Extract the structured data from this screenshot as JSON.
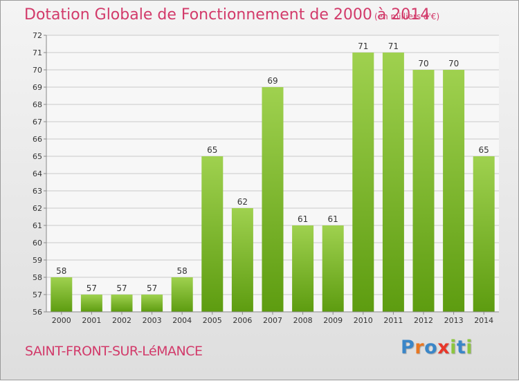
{
  "title": "Dotation Globale de Fonctionnement de 2000 à 2014",
  "unit_note": "(en milliers d'€)",
  "commune": "SAINT-FRONT-SUR-LéMANCE",
  "logo": {
    "text": "Proxiti",
    "letters": [
      {
        "ch": "P",
        "color": "#3a86c8"
      },
      {
        "ch": "r",
        "color": "#e87722"
      },
      {
        "ch": "o",
        "color": "#3a86c8"
      },
      {
        "ch": "x",
        "color": "#e8372a"
      },
      {
        "ch": "i",
        "color": "#8cc63f"
      },
      {
        "ch": "t",
        "color": "#3a86c8"
      },
      {
        "ch": "i",
        "color": "#8cc63f"
      }
    ]
  },
  "colors": {
    "title": "#d23a6a",
    "bar_top": "#9fd14f",
    "bar_bottom": "#5d9c10",
    "grid": "#c8c8c8",
    "axis_text": "#333333"
  },
  "chart_data": {
    "type": "bar",
    "categories": [
      "2000",
      "2001",
      "2002",
      "2003",
      "2004",
      "2005",
      "2006",
      "2007",
      "2008",
      "2009",
      "2010",
      "2011",
      "2012",
      "2013",
      "2014"
    ],
    "values": [
      58,
      57,
      57,
      57,
      58,
      65,
      62,
      69,
      61,
      61,
      71,
      71,
      70,
      70,
      65
    ],
    "ylim": [
      56,
      72
    ],
    "yticks": [
      56,
      57,
      58,
      59,
      60,
      61,
      62,
      63,
      64,
      65,
      66,
      67,
      68,
      69,
      70,
      71,
      72
    ],
    "grid": true,
    "data_labels": true
  }
}
